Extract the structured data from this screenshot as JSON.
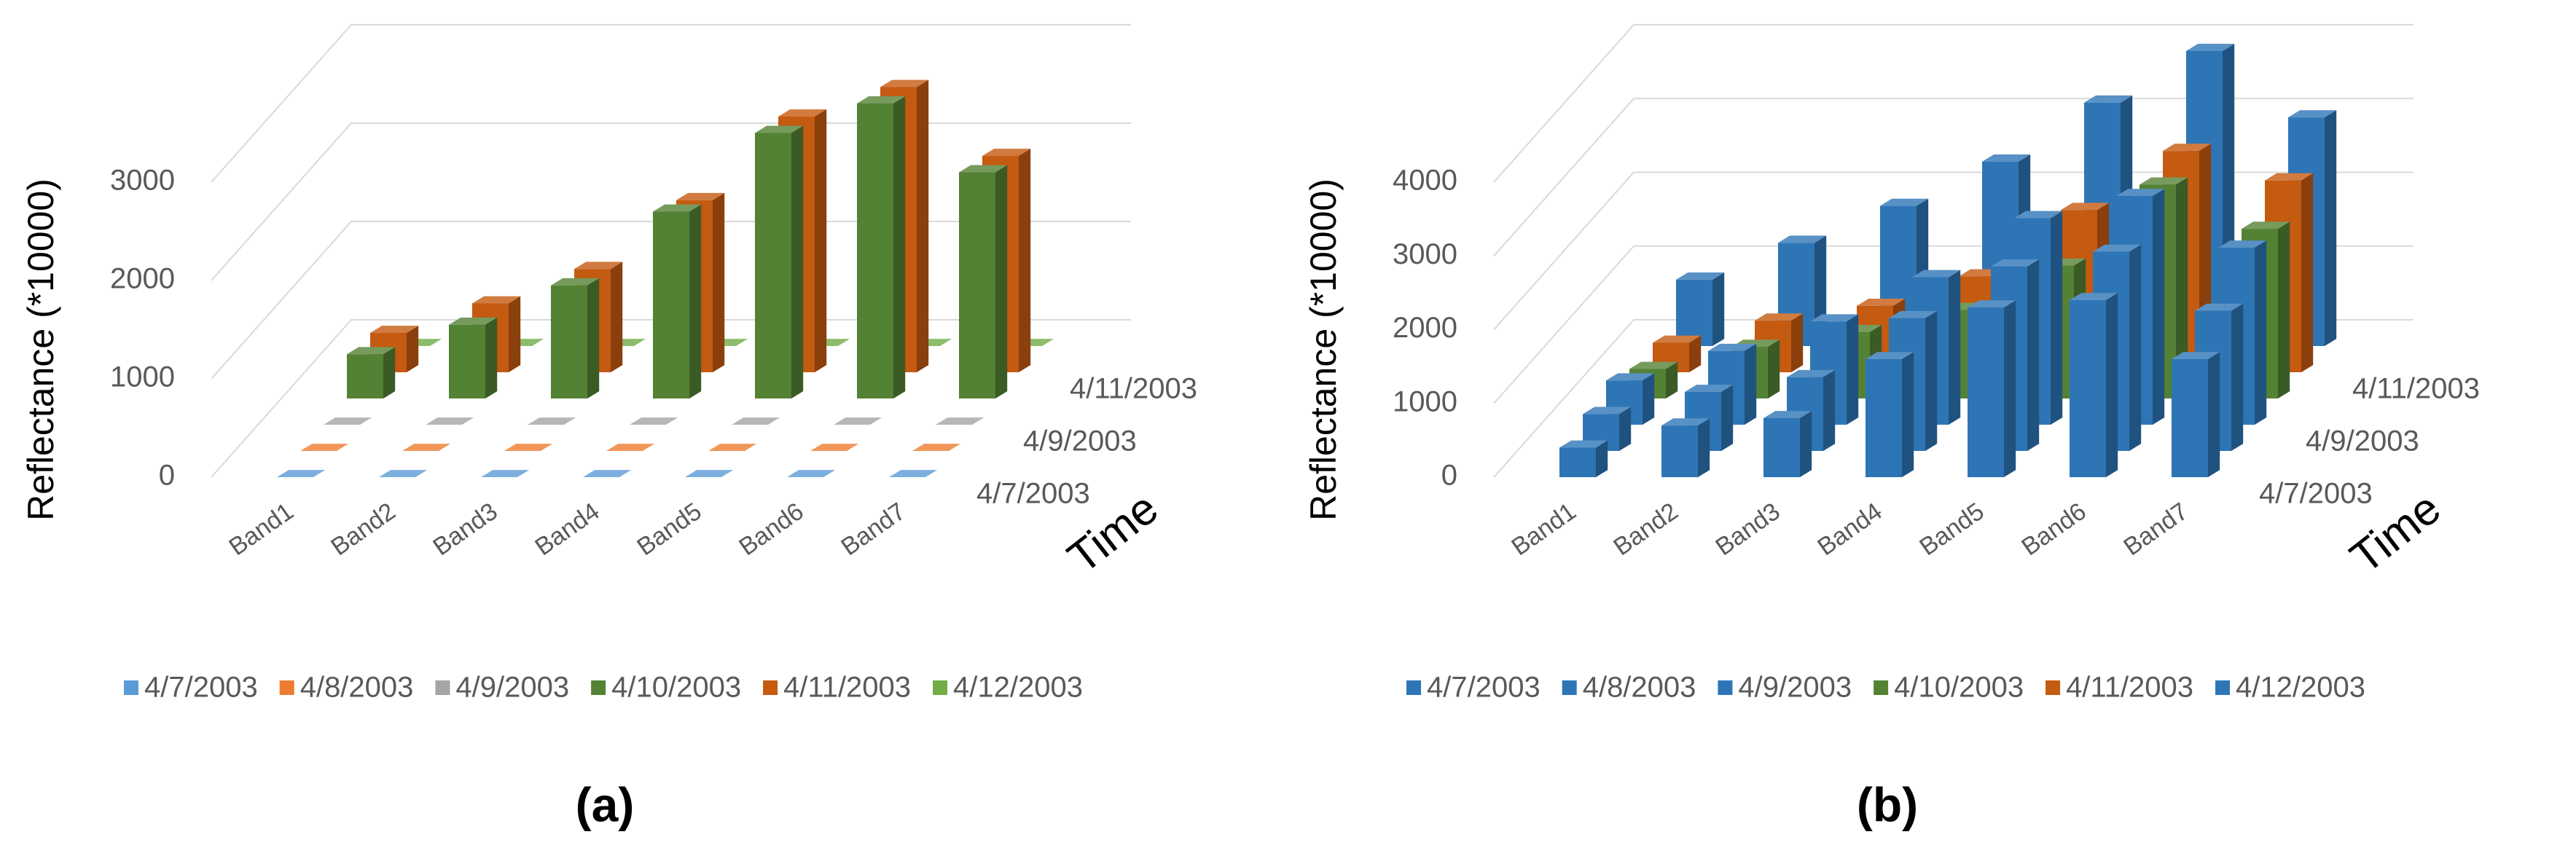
{
  "chart_data": [
    {
      "type": "bar",
      "panel_label": "(a)",
      "ylabel": "Reflectance (*10000)",
      "ztitle": "Time",
      "categories": [
        "Band1",
        "Band2",
        "Band3",
        "Band4",
        "Band5",
        "Band6",
        "Band7"
      ],
      "ylim": [
        0,
        3000
      ],
      "yticks": [
        0,
        1000,
        2000,
        3000
      ],
      "grid": true,
      "series": [
        {
          "name": "4/7/2003",
          "color": "#5b9bd5",
          "values": [
            0,
            0,
            0,
            0,
            0,
            0,
            0
          ]
        },
        {
          "name": "4/8/2003",
          "color": "#ed7d31",
          "values": [
            0,
            0,
            0,
            0,
            0,
            0,
            0
          ]
        },
        {
          "name": "4/9/2003",
          "color": "#a5a5a5",
          "values": [
            0,
            0,
            0,
            0,
            0,
            0,
            0
          ]
        },
        {
          "name": "4/10/2003",
          "color": "#548235",
          "values": [
            450,
            750,
            1150,
            1900,
            2700,
            3000,
            2300
          ]
        },
        {
          "name": "4/11/2003",
          "color": "#c55a11",
          "values": [
            400,
            700,
            1050,
            1750,
            2600,
            2900,
            2200
          ]
        },
        {
          "name": "4/12/2003",
          "color": "#70ad47",
          "values": [
            0,
            0,
            0,
            0,
            0,
            0,
            0
          ]
        }
      ]
    },
    {
      "type": "bar",
      "panel_label": "(b)",
      "ylabel": "Reflectance (*10000)",
      "ztitle": "Time",
      "categories": [
        "Band1",
        "Band2",
        "Band3",
        "Band4",
        "Band5",
        "Band6",
        "Band7"
      ],
      "ylim": [
        0,
        4000
      ],
      "yticks": [
        0,
        1000,
        2000,
        3000,
        4000
      ],
      "grid": true,
      "series": [
        {
          "name": "4/7/2003",
          "color": "#2e75b6",
          "values": [
            400,
            700,
            800,
            1600,
            2300,
            2400,
            1600
          ]
        },
        {
          "name": "4/8/2003",
          "color": "#2e75b6",
          "values": [
            500,
            800,
            1000,
            1800,
            2500,
            2700,
            1900
          ]
        },
        {
          "name": "4/9/2003",
          "color": "#2e75b6",
          "values": [
            600,
            1000,
            1400,
            2000,
            2800,
            3100,
            2400
          ]
        },
        {
          "name": "4/10/2003",
          "color": "#548235",
          "values": [
            400,
            700,
            900,
            1200,
            1800,
            2900,
            2300
          ]
        },
        {
          "name": "4/11/2003",
          "color": "#c55a11",
          "values": [
            400,
            700,
            900,
            1300,
            2200,
            3000,
            2600
          ]
        },
        {
          "name": "4/12/2003",
          "color": "#2e75b6",
          "values": [
            900,
            1400,
            1900,
            2500,
            3300,
            4000,
            3100
          ]
        }
      ]
    }
  ]
}
